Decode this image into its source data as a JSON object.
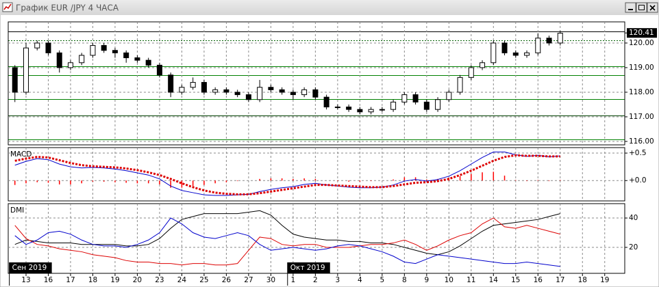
{
  "window_title": "График EUR /JPY  4 ЧАСА",
  "chart_data": [
    {
      "type": "candlestick",
      "x": [
        -0.5,
        0,
        0.5,
        1,
        1.5,
        2,
        2.5,
        3,
        3.5,
        4,
        4.5,
        5,
        5.5,
        6,
        6.5,
        7,
        7.5,
        8,
        8.5,
        9,
        9.5,
        10,
        10.5,
        11,
        11.5,
        12,
        12.5,
        13,
        13.5,
        14,
        14.5,
        15,
        15.5,
        16,
        16.5,
        17,
        17.5,
        18,
        18.5,
        19,
        19.5,
        20,
        20.5,
        21,
        21.5,
        22,
        22.5,
        23,
        23.5,
        24
      ],
      "open": [
        119.0,
        118.0,
        119.8,
        120.0,
        119.6,
        119.0,
        119.2,
        119.5,
        119.9,
        119.7,
        119.6,
        119.4,
        119.3,
        119.1,
        118.7,
        118.0,
        118.2,
        118.4,
        118.0,
        118.1,
        118.0,
        117.9,
        117.7,
        118.2,
        118.1,
        118.0,
        117.9,
        118.1,
        117.8,
        117.4,
        117.4,
        117.3,
        117.2,
        117.3,
        117.3,
        117.6,
        117.9,
        117.6,
        117.3,
        117.7,
        118.0,
        118.6,
        119.0,
        119.2,
        120.0,
        119.6,
        119.5,
        119.6,
        120.2,
        120.0
      ],
      "high": [
        119.1,
        120.0,
        120.1,
        120.1,
        119.7,
        119.3,
        119.6,
        120.0,
        120.0,
        119.8,
        119.7,
        119.5,
        119.4,
        119.2,
        118.8,
        118.3,
        118.6,
        118.5,
        118.2,
        118.2,
        118.1,
        118.0,
        118.5,
        118.3,
        118.2,
        118.1,
        118.2,
        118.2,
        117.9,
        117.5,
        117.5,
        117.4,
        117.4,
        117.4,
        117.7,
        118.0,
        118.0,
        117.7,
        117.8,
        118.1,
        118.7,
        119.1,
        119.3,
        120.1,
        120.1,
        119.7,
        119.7,
        120.4,
        120.3,
        120.5
      ],
      "low": [
        117.6,
        117.9,
        119.7,
        119.5,
        118.8,
        118.9,
        119.1,
        119.4,
        119.6,
        119.4,
        119.2,
        119.2,
        119.0,
        118.6,
        117.8,
        117.9,
        118.1,
        117.9,
        117.9,
        117.9,
        117.8,
        117.6,
        117.6,
        118.0,
        117.9,
        117.7,
        117.8,
        117.7,
        117.3,
        117.3,
        117.2,
        117.1,
        117.1,
        117.2,
        117.2,
        117.5,
        117.5,
        117.2,
        117.2,
        117.6,
        117.9,
        118.5,
        118.9,
        119.1,
        119.5,
        119.4,
        119.4,
        119.5,
        119.9,
        119.9
      ],
      "close": [
        118.0,
        119.8,
        120.0,
        119.6,
        119.0,
        119.2,
        119.5,
        119.9,
        119.7,
        119.6,
        119.4,
        119.3,
        119.1,
        118.7,
        118.0,
        118.2,
        118.4,
        118.0,
        118.1,
        118.0,
        117.9,
        117.7,
        118.2,
        118.1,
        118.0,
        117.9,
        118.1,
        117.8,
        117.4,
        117.4,
        117.3,
        117.2,
        117.3,
        117.3,
        117.6,
        117.9,
        117.6,
        117.3,
        117.7,
        118.0,
        118.6,
        119.0,
        119.2,
        120.0,
        119.6,
        119.5,
        119.6,
        120.2,
        120.0,
        120.4
      ],
      "up_color": "#ffffff",
      "down_color": "#000000",
      "xlim": [
        -0.8,
        26.9
      ],
      "ylim": [
        115.86,
        120.86
      ],
      "yticks": [
        {
          "value": 116,
          "label": "116.00"
        },
        {
          "value": 117,
          "label": "117.00"
        },
        {
          "value": 118,
          "label": "118.00"
        },
        {
          "value": 119,
          "label": "119.00"
        },
        {
          "value": 120,
          "label": "120.00"
        }
      ],
      "grid": true,
      "last_price": 120.41
    },
    {
      "type": "macd",
      "title": "MACD",
      "x": [
        -0.5,
        0,
        0.5,
        1,
        1.5,
        2,
        2.5,
        3,
        3.5,
        4,
        4.5,
        5,
        5.5,
        6,
        6.5,
        7,
        7.5,
        8,
        8.5,
        9,
        9.5,
        10,
        10.5,
        11,
        11.5,
        12,
        12.5,
        13,
        13.5,
        14,
        14.5,
        15,
        15.5,
        16,
        16.5,
        17,
        17.5,
        18,
        18.5,
        19,
        19.5,
        20,
        20.5,
        21,
        21.5,
        22,
        22.5,
        23,
        23.5,
        24
      ],
      "series": [
        {
          "style": "bar",
          "color": "#ff0000",
          "values": [
            -0.08,
            -0.05,
            -0.03,
            -0.04,
            -0.07,
            -0.07,
            -0.05,
            -0.02,
            -0.02,
            -0.03,
            -0.04,
            -0.05,
            -0.05,
            -0.07,
            -0.13,
            -0.13,
            -0.1,
            -0.08,
            -0.05,
            -0.03,
            -0.01,
            0.0,
            0.03,
            0.04,
            0.04,
            0.03,
            0.04,
            0.03,
            0.0,
            -0.01,
            -0.02,
            -0.02,
            -0.01,
            0.0,
            0.02,
            0.06,
            0.06,
            0.02,
            0.03,
            0.05,
            0.08,
            0.12,
            0.15,
            0.16,
            0.09,
            0.01,
            -0.01,
            0.01,
            -0.01,
            0.01
          ]
        },
        {
          "style": "line",
          "color": "#0000cc",
          "values": [
            0.28,
            0.35,
            0.4,
            0.38,
            0.3,
            0.25,
            0.23,
            0.24,
            0.23,
            0.21,
            0.18,
            0.14,
            0.1,
            0.03,
            -0.1,
            -0.18,
            -0.22,
            -0.26,
            -0.27,
            -0.27,
            -0.26,
            -0.25,
            -0.2,
            -0.16,
            -0.13,
            -0.11,
            -0.07,
            -0.05,
            -0.08,
            -0.1,
            -0.12,
            -0.13,
            -0.13,
            -0.12,
            -0.08,
            -0.01,
            0.02,
            -0.01,
            0.02,
            0.08,
            0.18,
            0.3,
            0.42,
            0.52,
            0.52,
            0.47,
            0.44,
            0.46,
            0.43,
            0.45
          ]
        },
        {
          "style": "dotted",
          "color": "#dd0000",
          "values": [
            0.36,
            0.4,
            0.43,
            0.42,
            0.37,
            0.32,
            0.28,
            0.26,
            0.25,
            0.24,
            0.22,
            0.19,
            0.15,
            0.1,
            0.03,
            -0.05,
            -0.12,
            -0.18,
            -0.22,
            -0.24,
            -0.25,
            -0.25,
            -0.23,
            -0.2,
            -0.17,
            -0.14,
            -0.11,
            -0.08,
            -0.08,
            -0.09,
            -0.1,
            -0.11,
            -0.12,
            -0.12,
            -0.1,
            -0.07,
            -0.04,
            -0.03,
            -0.01,
            0.03,
            0.1,
            0.18,
            0.27,
            0.36,
            0.43,
            0.46,
            0.45,
            0.45,
            0.44,
            0.44
          ]
        }
      ],
      "xlim": [
        -0.8,
        26.9
      ],
      "ylim": [
        -0.37,
        0.6
      ],
      "yticks": [
        {
          "value": 0,
          "label": "+0.0"
        },
        {
          "value": 0.5,
          "label": "+0.5"
        }
      ],
      "grid": true
    },
    {
      "type": "line",
      "title": "DMI",
      "x": [
        -0.5,
        0,
        0.5,
        1,
        1.5,
        2,
        2.5,
        3,
        3.5,
        4,
        4.5,
        5,
        5.5,
        6,
        6.5,
        7,
        7.5,
        8,
        8.5,
        9,
        9.5,
        10,
        10.5,
        11,
        11.5,
        12,
        12.5,
        13,
        13.5,
        14,
        14.5,
        15,
        15.5,
        16,
        16.5,
        17,
        17.5,
        18,
        18.5,
        19,
        19.5,
        20,
        20.5,
        21,
        21.5,
        22,
        22.5,
        23,
        23.5,
        24
      ],
      "series": [
        {
          "color": "#000000",
          "values": [
            22,
            25,
            24,
            23,
            23,
            23,
            22,
            22,
            22,
            22,
            21,
            21,
            22,
            26,
            33,
            39,
            41,
            43,
            43,
            43,
            43,
            44,
            45,
            42,
            35,
            29,
            27,
            26,
            25,
            25,
            24,
            24,
            23,
            23,
            22,
            20,
            18,
            16,
            15,
            17,
            21,
            26,
            31,
            35,
            36,
            37,
            38,
            39,
            41,
            43
          ]
        },
        {
          "color": "#dd0000",
          "values": [
            35,
            26,
            22,
            21,
            19,
            18,
            17,
            15,
            14,
            13,
            11,
            10,
            10,
            9,
            9,
            8,
            9,
            9,
            8,
            8,
            9,
            18,
            27,
            26,
            22,
            21,
            22,
            22,
            20,
            20,
            20,
            21,
            22,
            22,
            23,
            25,
            22,
            18,
            21,
            25,
            28,
            30,
            36,
            40,
            34,
            33,
            35,
            33,
            31,
            29
          ]
        },
        {
          "color": "#0000cc",
          "values": [
            28,
            22,
            25,
            30,
            31,
            29,
            25,
            22,
            21,
            21,
            20,
            22,
            25,
            30,
            40,
            36,
            30,
            27,
            26,
            28,
            30,
            28,
            22,
            18,
            19,
            20,
            19,
            18,
            19,
            21,
            22,
            21,
            19,
            17,
            14,
            10,
            9,
            12,
            15,
            14,
            13,
            12,
            11,
            10,
            9,
            9,
            10,
            9,
            8,
            7
          ]
        }
      ],
      "xlim": [
        -0.8,
        26.9
      ],
      "ylim": [
        2.3,
        49.8
      ],
      "yticks": [
        20,
        40
      ],
      "grid": true,
      "xticks": [
        {
          "value": 0,
          "label": "13"
        },
        {
          "value": 1,
          "label": "16"
        },
        {
          "value": 2,
          "label": "17"
        },
        {
          "value": 3,
          "label": "18"
        },
        {
          "value": 4,
          "label": "19"
        },
        {
          "value": 5,
          "label": "20"
        },
        {
          "value": 6,
          "label": "23"
        },
        {
          "value": 7,
          "label": "24"
        },
        {
          "value": 8,
          "label": "25"
        },
        {
          "value": 9,
          "label": "26"
        },
        {
          "value": 10,
          "label": "27"
        },
        {
          "value": 11,
          "label": "30"
        },
        {
          "value": 12,
          "label": "1"
        },
        {
          "value": 13,
          "label": "2"
        },
        {
          "value": 14,
          "label": "3"
        },
        {
          "value": 15,
          "label": "4"
        },
        {
          "value": 16,
          "label": "5"
        },
        {
          "value": 17,
          "label": "8"
        },
        {
          "value": 18,
          "label": "9"
        },
        {
          "value": 19,
          "label": "10"
        },
        {
          "value": 20,
          "label": "11"
        },
        {
          "value": 21,
          "label": "14"
        },
        {
          "value": 22,
          "label": "15"
        },
        {
          "value": 23,
          "label": "16"
        },
        {
          "value": 24,
          "label": "17"
        },
        {
          "value": 25,
          "label": "18"
        },
        {
          "value": 26,
          "label": "19"
        }
      ],
      "period_labels": [
        {
          "value": -0.75,
          "label": "Сен 2019"
        },
        {
          "value": 11.75,
          "label": "Окт 2019"
        }
      ]
    }
  ]
}
